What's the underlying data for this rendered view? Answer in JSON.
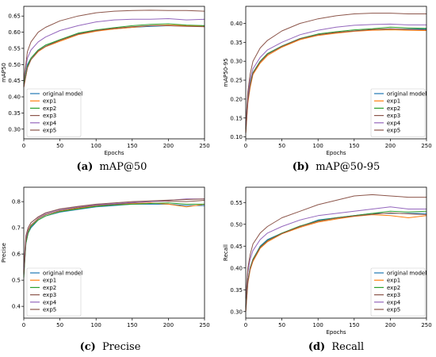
{
  "figure": {
    "legend_names": [
      "original model",
      "exp1",
      "exp2",
      "exp3",
      "exp4",
      "exp5"
    ],
    "series_colors": [
      "#1f77b4",
      "#ff7f0e",
      "#2ca02c",
      "#8c564b",
      "#9467bd",
      "#8c564b"
    ],
    "panel_colors": {
      "frame": "#000000",
      "legend_border": "#cccccc"
    }
  },
  "chart_data": [
    {
      "id": "a",
      "type": "line",
      "caption_label": "(a)",
      "caption_text": "mAP@50",
      "xlabel": "Epochs",
      "ylabel": "mAP50",
      "xlim": [
        0,
        250
      ],
      "ylim": [
        0.27,
        0.68
      ],
      "xticks": [
        0,
        50,
        100,
        150,
        200,
        250
      ],
      "yticks": [
        0.3,
        0.35,
        0.4,
        0.45,
        0.5,
        0.55,
        0.6,
        0.65
      ],
      "ytick_labels": [
        "0.30",
        "0.35",
        "0.40",
        "0.45",
        "0.50",
        "0.55",
        "0.60",
        "0.65"
      ],
      "legend_position": "lower-left",
      "x": [
        0,
        5,
        10,
        20,
        30,
        50,
        75,
        100,
        125,
        150,
        175,
        200,
        225,
        250
      ],
      "series": [
        {
          "name": "original model",
          "values": [
            0.44,
            0.5,
            0.52,
            0.545,
            0.56,
            0.575,
            0.595,
            0.605,
            0.61,
            0.615,
            0.618,
            0.62,
            0.62,
            0.62
          ]
        },
        {
          "name": "exp1",
          "values": [
            0.43,
            0.49,
            0.515,
            0.54,
            0.555,
            0.572,
            0.592,
            0.603,
            0.61,
            0.615,
            0.62,
            0.622,
            0.62,
            0.618
          ]
        },
        {
          "name": "exp2",
          "values": [
            0.44,
            0.495,
            0.52,
            0.545,
            0.56,
            0.577,
            0.597,
            0.607,
            0.614,
            0.62,
            0.624,
            0.626,
            0.622,
            0.62
          ]
        },
        {
          "name": "exp3",
          "values": [
            0.43,
            0.49,
            0.515,
            0.542,
            0.556,
            0.575,
            0.594,
            0.605,
            0.612,
            0.617,
            0.62,
            0.62,
            0.618,
            0.617
          ]
        },
        {
          "name": "exp4",
          "values": [
            0.45,
            0.52,
            0.545,
            0.57,
            0.585,
            0.605,
            0.62,
            0.632,
            0.638,
            0.64,
            0.64,
            0.642,
            0.638,
            0.64
          ]
        },
        {
          "name": "exp5",
          "values": [
            0.45,
            0.54,
            0.57,
            0.6,
            0.615,
            0.635,
            0.65,
            0.66,
            0.665,
            0.667,
            0.668,
            0.667,
            0.667,
            0.665
          ]
        }
      ]
    },
    {
      "id": "b",
      "type": "line",
      "caption_label": "(b)",
      "caption_text": "mAP@50-95",
      "xlabel": "Epochs",
      "ylabel": "mAP50-95",
      "xlim": [
        0,
        250
      ],
      "ylim": [
        0.095,
        0.445
      ],
      "xticks": [
        0,
        50,
        100,
        150,
        200,
        250
      ],
      "yticks": [
        0.1,
        0.15,
        0.2,
        0.25,
        0.3,
        0.35,
        0.4
      ],
      "ytick_labels": [
        "0.10",
        "0.15",
        "0.20",
        "0.25",
        "0.30",
        "0.35",
        "0.40"
      ],
      "legend_position": "lower-right",
      "x": [
        0,
        3,
        6,
        10,
        20,
        30,
        50,
        75,
        100,
        125,
        150,
        175,
        200,
        225,
        250
      ],
      "series": [
        {
          "name": "original model",
          "values": [
            0.12,
            0.2,
            0.24,
            0.27,
            0.3,
            0.32,
            0.34,
            0.36,
            0.37,
            0.375,
            0.38,
            0.383,
            0.385,
            0.385,
            0.385
          ]
        },
        {
          "name": "exp1",
          "values": [
            0.11,
            0.19,
            0.23,
            0.265,
            0.295,
            0.315,
            0.337,
            0.357,
            0.368,
            0.374,
            0.379,
            0.382,
            0.383,
            0.382,
            0.381
          ]
        },
        {
          "name": "exp2",
          "values": [
            0.12,
            0.2,
            0.24,
            0.27,
            0.3,
            0.32,
            0.34,
            0.36,
            0.372,
            0.378,
            0.383,
            0.386,
            0.39,
            0.388,
            0.387
          ]
        },
        {
          "name": "exp3",
          "values": [
            0.11,
            0.195,
            0.235,
            0.268,
            0.298,
            0.318,
            0.339,
            0.359,
            0.37,
            0.376,
            0.38,
            0.384,
            0.386,
            0.384,
            0.383
          ]
        },
        {
          "name": "exp4",
          "values": [
            0.13,
            0.21,
            0.25,
            0.28,
            0.31,
            0.33,
            0.35,
            0.37,
            0.382,
            0.39,
            0.395,
            0.397,
            0.398,
            0.396,
            0.396
          ]
        },
        {
          "name": "exp5",
          "values": [
            0.13,
            0.22,
            0.265,
            0.3,
            0.335,
            0.355,
            0.38,
            0.4,
            0.412,
            0.42,
            0.425,
            0.427,
            0.427,
            0.425,
            0.425
          ]
        }
      ]
    },
    {
      "id": "c",
      "type": "line",
      "caption_label": "(c)",
      "caption_text": "Precise",
      "xlabel": "",
      "ylabel": "Precise",
      "xlim": [
        0,
        250
      ],
      "ylim": [
        0.355,
        0.855
      ],
      "xticks": [
        0,
        50,
        100,
        150,
        200,
        250
      ],
      "yticks": [
        0.4,
        0.5,
        0.6,
        0.7,
        0.8
      ],
      "ytick_labels": [
        "0.4",
        "0.5",
        "0.6",
        "0.7",
        "0.8"
      ],
      "legend_position": "lower-left",
      "x": [
        0,
        3,
        6,
        10,
        20,
        30,
        50,
        75,
        100,
        125,
        150,
        175,
        200,
        225,
        250
      ],
      "series": [
        {
          "name": "original model",
          "values": [
            0.52,
            0.64,
            0.68,
            0.7,
            0.73,
            0.745,
            0.76,
            0.77,
            0.78,
            0.785,
            0.79,
            0.79,
            0.79,
            0.785,
            0.785
          ]
        },
        {
          "name": "exp1",
          "values": [
            0.53,
            0.65,
            0.69,
            0.71,
            0.735,
            0.75,
            0.765,
            0.775,
            0.783,
            0.788,
            0.792,
            0.795,
            0.79,
            0.78,
            0.79
          ]
        },
        {
          "name": "exp2",
          "values": [
            0.51,
            0.64,
            0.68,
            0.705,
            0.73,
            0.745,
            0.762,
            0.772,
            0.782,
            0.787,
            0.79,
            0.793,
            0.795,
            0.79,
            0.79
          ]
        },
        {
          "name": "exp3",
          "values": [
            0.52,
            0.65,
            0.69,
            0.71,
            0.735,
            0.75,
            0.766,
            0.777,
            0.786,
            0.79,
            0.795,
            0.8,
            0.802,
            0.8,
            0.805
          ]
        },
        {
          "name": "exp4",
          "values": [
            0.54,
            0.66,
            0.7,
            0.72,
            0.74,
            0.755,
            0.77,
            0.78,
            0.788,
            0.792,
            0.797,
            0.8,
            0.805,
            0.81,
            0.81
          ]
        },
        {
          "name": "exp5",
          "values": [
            0.55,
            0.67,
            0.7,
            0.72,
            0.742,
            0.757,
            0.772,
            0.782,
            0.79,
            0.795,
            0.8,
            0.803,
            0.806,
            0.808,
            0.81
          ]
        }
      ]
    },
    {
      "id": "d",
      "type": "line",
      "caption_label": "(d)",
      "caption_text": "Recall",
      "xlabel": "Epochs",
      "ylabel": "Recall",
      "xlim": [
        0,
        250
      ],
      "ylim": [
        0.285,
        0.585
      ],
      "xticks": [
        0,
        50,
        100,
        150,
        200,
        250
      ],
      "yticks": [
        0.3,
        0.35,
        0.4,
        0.45,
        0.5,
        0.55
      ],
      "ytick_labels": [
        "0.30",
        "0.35",
        "0.40",
        "0.45",
        "0.50",
        "0.55"
      ],
      "legend_position": "lower-right",
      "x": [
        0,
        3,
        6,
        10,
        20,
        30,
        50,
        75,
        100,
        125,
        150,
        175,
        200,
        225,
        250
      ],
      "series": [
        {
          "name": "original model",
          "values": [
            0.31,
            0.37,
            0.4,
            0.42,
            0.45,
            0.465,
            0.48,
            0.495,
            0.51,
            0.515,
            0.52,
            0.525,
            0.525,
            0.525,
            0.525
          ]
        },
        {
          "name": "exp1",
          "values": [
            0.3,
            0.365,
            0.395,
            0.415,
            0.445,
            0.46,
            0.478,
            0.493,
            0.505,
            0.512,
            0.518,
            0.522,
            0.52,
            0.515,
            0.52
          ]
        },
        {
          "name": "exp2",
          "values": [
            0.31,
            0.37,
            0.4,
            0.42,
            0.448,
            0.463,
            0.48,
            0.496,
            0.508,
            0.515,
            0.52,
            0.525,
            0.53,
            0.528,
            0.53
          ]
        },
        {
          "name": "exp3",
          "values": [
            0.3,
            0.368,
            0.398,
            0.418,
            0.447,
            0.462,
            0.479,
            0.495,
            0.507,
            0.514,
            0.519,
            0.523,
            0.526,
            0.524,
            0.522
          ]
        },
        {
          "name": "exp4",
          "values": [
            0.33,
            0.39,
            0.42,
            0.44,
            0.465,
            0.48,
            0.495,
            0.51,
            0.52,
            0.525,
            0.53,
            0.535,
            0.54,
            0.535,
            0.535
          ]
        },
        {
          "name": "exp5",
          "values": [
            0.33,
            0.4,
            0.43,
            0.455,
            0.48,
            0.495,
            0.515,
            0.53,
            0.545,
            0.555,
            0.565,
            0.568,
            0.565,
            0.562,
            0.562
          ]
        }
      ]
    }
  ]
}
